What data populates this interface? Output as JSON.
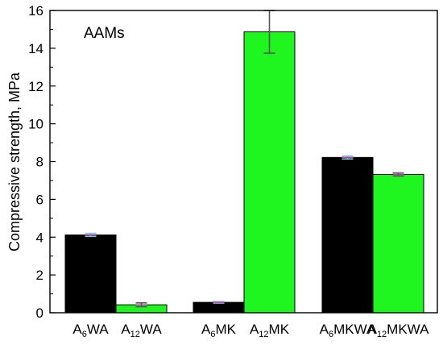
{
  "chart_data": {
    "type": "bar",
    "annotation": "AAMs",
    "ylabel": "Compressive strength, MPa",
    "xlabel": "",
    "ylim": [
      0,
      16
    ],
    "yticks": [
      0,
      2,
      4,
      6,
      8,
      10,
      12,
      14,
      16
    ],
    "grid": false,
    "legend": "none",
    "categories": [
      {
        "label_base": "A",
        "label_sub": "6",
        "label_rest": "WA",
        "value": 4.12,
        "error": 0.08,
        "color": "#000000",
        "error_color": "#7ec8c8"
      },
      {
        "label_base": "A",
        "label_sub": "12",
        "label_rest": "WA",
        "value": 0.42,
        "error": 0.1,
        "color": "#1ff51f",
        "error_color": "#555555"
      },
      {
        "label_base": "A",
        "label_sub": "6",
        "label_rest": "MK",
        "value": 0.55,
        "error": 0.04,
        "color": "#000000",
        "error_color": "#7ec8c8"
      },
      {
        "label_base": "A",
        "label_sub": "12",
        "label_rest": "MK",
        "value": 14.87,
        "error": 1.13,
        "color": "#1ff51f",
        "error_color": "#555555"
      },
      {
        "label_base": "A",
        "label_sub": "6",
        "label_rest": "MKWA",
        "value": 8.22,
        "error": 0.08,
        "color": "#000000",
        "error_color": "#7ec8c8"
      },
      {
        "label_base": "A",
        "label_sub": "12",
        "label_rest": "MKWA",
        "value": 7.32,
        "error": 0.08,
        "color": "#1ff51f",
        "error_color": "#555555"
      }
    ],
    "groups": [
      [
        0,
        1
      ],
      [
        2,
        3
      ],
      [
        4,
        5
      ]
    ]
  }
}
